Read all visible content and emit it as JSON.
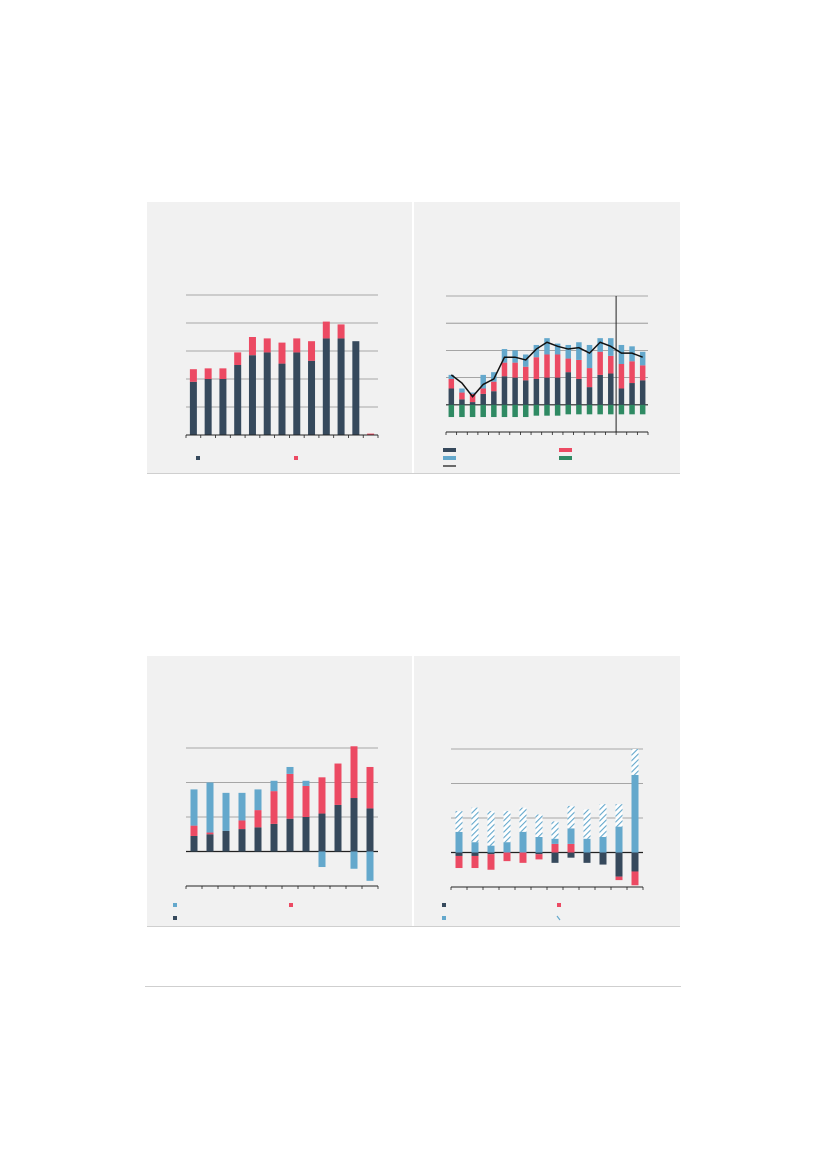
{
  "colors": {
    "dark": "#36495c",
    "red": "#ec4a63",
    "blue": "#64a8cc",
    "green": "#2f8a63",
    "grid": "#8c8c8c",
    "axis": "#222222",
    "line": "#111111"
  },
  "chart_data": [
    {
      "id": "chart1",
      "type": "bar",
      "stacked": true,
      "ylim": [
        0,
        5
      ],
      "yticks": [
        0,
        1,
        2,
        3,
        4,
        5
      ],
      "series": [
        {
          "color": "dark",
          "values": [
            1.9,
            2.0,
            2.0,
            2.5,
            2.85,
            2.95,
            2.55,
            2.95,
            2.65,
            3.45,
            3.45,
            3.35,
            0.0
          ]
        },
        {
          "color": "red",
          "values": [
            0.45,
            0.38,
            0.38,
            0.45,
            0.65,
            0.5,
            0.75,
            0.5,
            0.7,
            0.6,
            0.5,
            0.0,
            0.05
          ]
        }
      ],
      "legend": [
        "dark",
        "red"
      ]
    },
    {
      "id": "chart2",
      "type": "bar",
      "stacked": true,
      "ylim": [
        -1,
        4
      ],
      "yticks": [
        -1,
        0,
        1,
        2,
        3,
        4
      ],
      "vline_after_index": 15,
      "series": [
        {
          "color": "dark",
          "values": [
            0.6,
            0.2,
            0.1,
            0.4,
            0.5,
            1.05,
            1.0,
            0.9,
            0.95,
            1.0,
            1.0,
            1.2,
            0.95,
            0.65,
            1.1,
            1.15,
            0.6,
            0.8,
            0.9
          ]
        },
        {
          "color": "red",
          "values": [
            0.35,
            0.25,
            0.3,
            0.2,
            0.35,
            0.5,
            0.55,
            0.5,
            0.8,
            0.85,
            0.85,
            0.5,
            0.7,
            0.7,
            0.85,
            0.65,
            0.9,
            0.8,
            0.55
          ]
        },
        {
          "color": "blue",
          "values": [
            0.15,
            0.15,
            0.05,
            0.5,
            0.35,
            0.5,
            0.45,
            0.45,
            0.45,
            0.6,
            0.4,
            0.5,
            0.65,
            0.85,
            0.5,
            0.65,
            0.7,
            0.55,
            0.5
          ]
        },
        {
          "color": "green",
          "values": [
            -0.45,
            -0.45,
            -0.45,
            -0.45,
            -0.45,
            -0.45,
            -0.45,
            -0.45,
            -0.4,
            -0.4,
            -0.4,
            -0.35,
            -0.35,
            -0.35,
            -0.35,
            -0.35,
            -0.35,
            -0.35,
            -0.35
          ]
        }
      ],
      "line": [
        1.1,
        0.8,
        0.3,
        0.75,
        0.95,
        1.75,
        1.75,
        1.65,
        2.05,
        2.3,
        2.15,
        2.05,
        2.1,
        1.9,
        2.3,
        2.15,
        1.9,
        1.9,
        1.75
      ],
      "legend": [
        "dark",
        "red",
        "blue",
        "green",
        "line"
      ]
    },
    {
      "id": "chart3",
      "type": "bar",
      "stacked": true,
      "ylim": [
        -1,
        3
      ],
      "yticks": [
        -1,
        0,
        1,
        2,
        3
      ],
      "series": [
        {
          "color": "dark",
          "values": [
            0.45,
            0.5,
            0.6,
            0.65,
            0.7,
            0.8,
            0.95,
            1.0,
            1.1,
            1.35,
            1.55,
            1.25
          ]
        },
        {
          "color": "red",
          "values": [
            0.3,
            0.05,
            0.0,
            0.25,
            0.5,
            0.95,
            1.3,
            0.9,
            1.05,
            1.2,
            1.5,
            1.2
          ]
        },
        {
          "color": "blue",
          "values": [
            1.05,
            1.45,
            1.1,
            0.8,
            0.6,
            0.3,
            0.2,
            0.15,
            -0.45,
            0.0,
            -0.5,
            -0.85
          ]
        }
      ],
      "legend": [
        "blue",
        "red",
        "dark"
      ]
    },
    {
      "id": "chart4",
      "type": "bar",
      "stacked": true,
      "ylim": [
        -1,
        3
      ],
      "yticks": [
        -1,
        0,
        1,
        2,
        3
      ],
      "series": [
        {
          "color": "dark",
          "values": [
            -0.1,
            -0.1,
            -0.05,
            0.0,
            0.0,
            -0.05,
            -0.3,
            -0.15,
            -0.3,
            -0.35,
            -0.7,
            -0.55
          ]
        },
        {
          "color": "red",
          "values": [
            -0.35,
            -0.35,
            -0.45,
            -0.25,
            -0.3,
            -0.15,
            0.25,
            0.25,
            0.0,
            0.0,
            -0.1,
            -0.4
          ]
        },
        {
          "color": "blue",
          "values": [
            0.6,
            0.3,
            0.2,
            0.3,
            0.6,
            0.45,
            0.15,
            0.45,
            0.4,
            0.45,
            0.75,
            2.25
          ]
        },
        {
          "color": "hatched",
          "values": [
            0.6,
            1.0,
            1.0,
            0.9,
            0.7,
            0.65,
            0.5,
            0.65,
            0.85,
            0.95,
            0.65,
            0.75
          ]
        }
      ],
      "legend": [
        "dark",
        "red",
        "blue",
        "hatched"
      ]
    }
  ]
}
